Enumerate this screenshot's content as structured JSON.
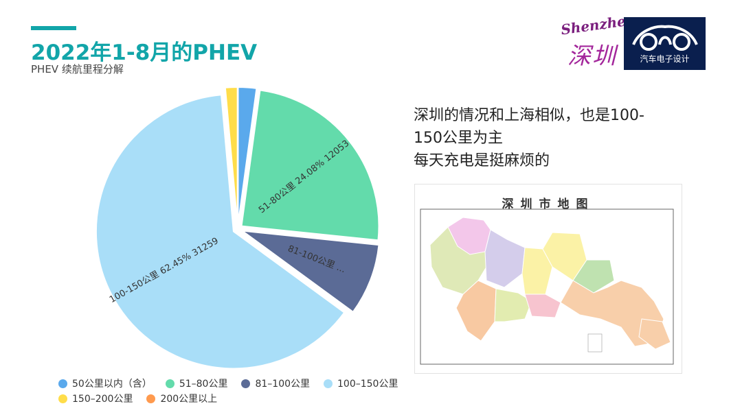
{
  "header": {
    "title": "2022年1-8月的PHEV",
    "subtitle": "PHEV 续航里程分解"
  },
  "logos": {
    "shenzhen_latin": "Shenzhen",
    "shenzhen_han": "深圳",
    "brand_name": "汽车电子设计"
  },
  "chart_data": {
    "type": "pie",
    "categories": [
      "50公里以内（含）",
      "51–80公里",
      "81–100公里",
      "100–150公里",
      "150–200公里",
      "200公里以上"
    ],
    "values": [
      1060,
      12053,
      4150,
      31259,
      700,
      0
    ],
    "percents": [
      2.12,
      24.08,
      8.29,
      62.45,
      1.4,
      0.0
    ],
    "colors": [
      "#5aa9ec",
      "#63dbab",
      "#5b6b96",
      "#a9def8",
      "#ffdd4a",
      "#ff9a4e"
    ],
    "data_labels": [
      "",
      "51-80公里  24.08%  12053",
      "81-100公里  ...",
      "100-150公里  62.45%  31259",
      "",
      ""
    ],
    "legend_position": "bottom-left"
  },
  "legend": {
    "items": [
      {
        "label": "50公里以内（含）",
        "color": "#5aa9ec"
      },
      {
        "label": "51–80公里",
        "color": "#63dbab"
      },
      {
        "label": "81–100公里",
        "color": "#5b6b96"
      },
      {
        "label": "100–150公里",
        "color": "#a9def8"
      },
      {
        "label": "150–200公里",
        "color": "#ffdd4a"
      },
      {
        "label": "200公里以上",
        "color": "#ff9a4e"
      }
    ]
  },
  "description": {
    "line1": "深圳的情况和上海相似，也是100-",
    "line2": "150公里为主",
    "line3": "每天充电是挺麻烦的"
  },
  "map": {
    "title": "深圳市地图"
  }
}
